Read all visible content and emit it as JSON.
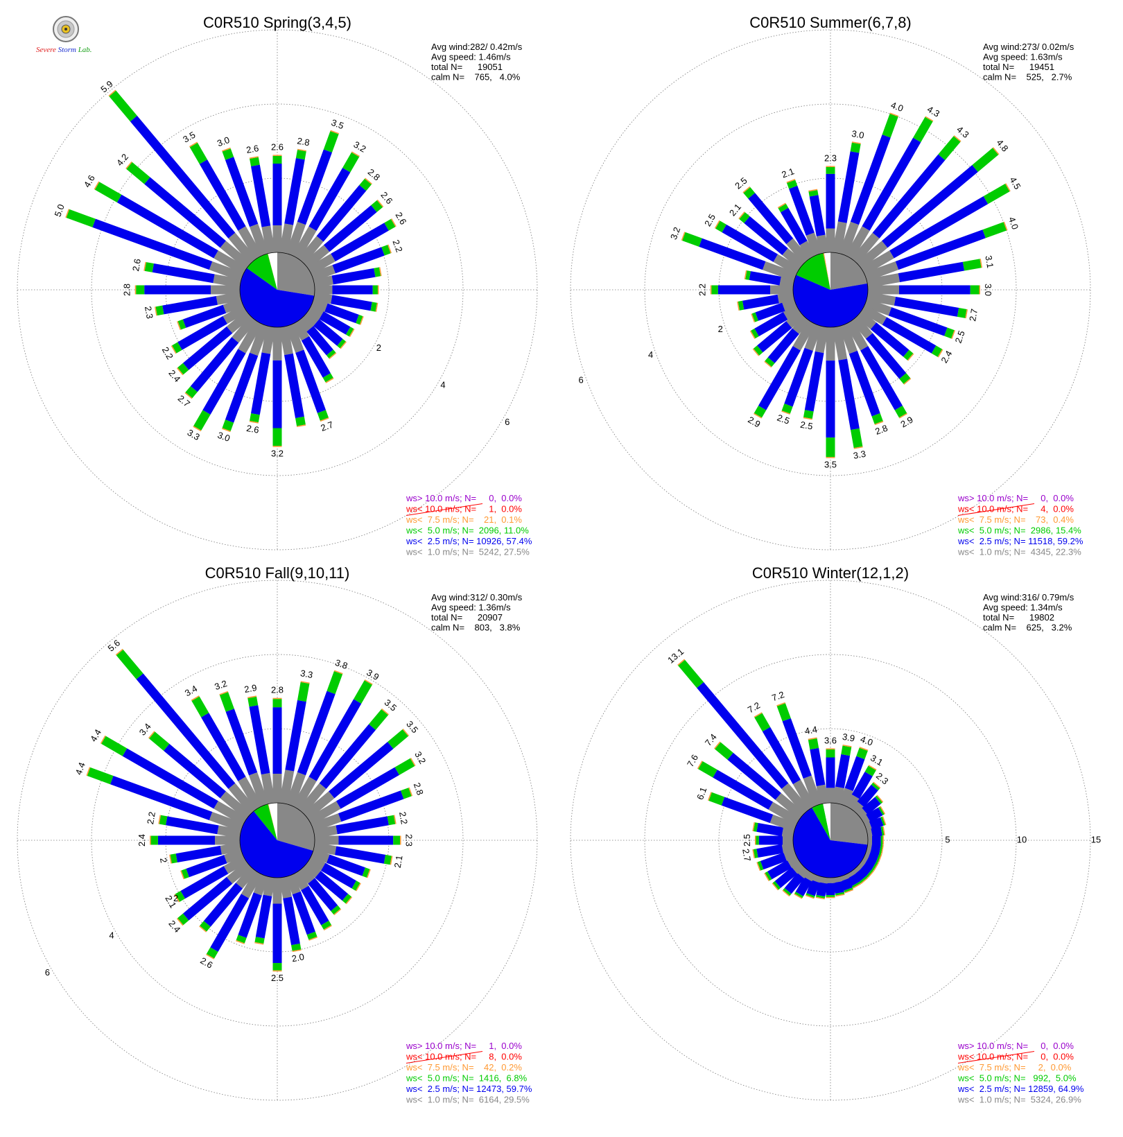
{
  "logo": {
    "line1": "Severe",
    "line2": "Storm",
    "line3": "Lab."
  },
  "colors": {
    "calm": "#ffffff",
    "lt1": "#888888",
    "lt2_5": "#0000ee",
    "lt5": "#00cc00",
    "lt7_5": "#ff9933",
    "lt10": "#ff0000",
    "gt10": "#9900cc"
  },
  "chart_data": [
    {
      "type": "windrose",
      "title": "C0R510 Spring(3,4,5)",
      "stats": [
        "Avg wind:282/ 0.42m/s",
        "Avg speed: 1.46m/s",
        "total N=      19051",
        "calm N=    765,   4.0%"
      ],
      "rings": [
        2,
        4,
        6
      ],
      "ring_label_angle": 120,
      "directions": [
        0,
        10,
        20,
        30,
        40,
        50,
        60,
        70,
        80,
        90,
        100,
        110,
        120,
        130,
        140,
        150,
        160,
        170,
        180,
        190,
        200,
        210,
        220,
        230,
        240,
        250,
        260,
        270,
        280,
        290,
        300,
        310,
        320,
        330,
        340,
        350
      ],
      "totals": [
        2.6,
        2.8,
        3.5,
        3.2,
        2.8,
        2.6,
        2.6,
        2.2,
        1.8,
        1.7,
        1.7,
        1.4,
        1.3,
        1.3,
        1.3,
        1.8,
        2.7,
        2.7,
        3.2,
        2.6,
        3.0,
        3.3,
        2.7,
        2.4,
        2.2,
        1.8,
        2.3,
        2.8,
        2.6,
        5.0,
        4.6,
        4.2,
        5.9,
        3.5,
        3.0,
        2.6
      ],
      "labels": [
        "2.6",
        "2.8",
        "3.5",
        "3.2",
        "2.8",
        "2.6",
        "2.6",
        "2.2",
        "",
        "",
        "",
        "",
        "",
        "",
        "",
        "",
        "2.7",
        "",
        "3.2",
        "2.6",
        "3.0",
        "3.3",
        "2.7",
        "2.4",
        "2.2",
        "",
        "2.3",
        "2.8",
        "2.6",
        "5.0",
        "4.6",
        "4.2",
        "5.9",
        "3.5",
        "3.0",
        "2.6"
      ],
      "pie": [
        {
          "key": "lt1",
          "angle": 99
        },
        {
          "key": "lt2_5",
          "angle": 206.6
        },
        {
          "key": "lt5",
          "angle": 39.6
        },
        {
          "key": "lt7_5",
          "angle": 0.4
        },
        {
          "key": "lt10",
          "angle": 0
        },
        {
          "key": "gt10",
          "angle": 0
        },
        {
          "key": "calm",
          "angle": 14.4
        }
      ],
      "legend": [
        {
          "key": "gt10",
          "text": "ws> 10.0 m/s; N=     0,  0.0%"
        },
        {
          "key": "lt10",
          "text": "ws< 10.0 m/s; N=     1,  0.0%"
        },
        {
          "key": "lt7_5",
          "text": "ws<  7.5 m/s; N=    21,  0.1%"
        },
        {
          "key": "lt5",
          "text": "ws<  5.0 m/s; N=  2096, 11.0%"
        },
        {
          "key": "lt2_5",
          "text": "ws<  2.5 m/s; N= 10926, 57.4%"
        },
        {
          "key": "lt1",
          "text": "ws<  1.0 m/s; N=  5242, 27.5%"
        }
      ]
    },
    {
      "type": "windrose",
      "title": "C0R510 Summer(6,7,8)",
      "stats": [
        "Avg wind:273/ 0.02m/s",
        "Avg speed: 1.63m/s",
        "total N=      19451",
        "calm N=    525,   2.7%"
      ],
      "rings": [
        2,
        4,
        6
      ],
      "ring_label_angle": 250,
      "directions": [
        0,
        10,
        20,
        30,
        40,
        50,
        60,
        70,
        80,
        90,
        100,
        110,
        120,
        130,
        140,
        150,
        160,
        170,
        180,
        190,
        200,
        210,
        220,
        230,
        240,
        250,
        260,
        270,
        280,
        290,
        300,
        310,
        320,
        330,
        340,
        350
      ],
      "totals": [
        2.3,
        3.0,
        4.0,
        4.3,
        4.3,
        4.8,
        4.5,
        4.0,
        3.1,
        3.0,
        2.7,
        2.5,
        2.4,
        1.8,
        2.2,
        2.9,
        2.8,
        3.3,
        3.5,
        2.5,
        2.5,
        2.9,
        1.6,
        1.6,
        1.4,
        1.2,
        1.5,
        2.2,
        1.3,
        3.2,
        2.5,
        2.1,
        2.5,
        1.6,
        2.1,
        1.7
      ],
      "labels": [
        "2.3",
        "3.0",
        "4.0",
        "4.3",
        "4.3",
        "4.8",
        "4.5",
        "4.0",
        "3.1",
        "3.0",
        "2.7",
        "2.5",
        "2.4",
        "",
        "",
        "2.9",
        "2.8",
        "3.3",
        "3.5",
        "2.5",
        "2.5",
        "2.9",
        "",
        "",
        "",
        "",
        "",
        "2.2",
        "",
        "3.2",
        "2.5",
        "2.1",
        "2.5",
        "",
        "2.1",
        ""
      ],
      "pie": [
        {
          "key": "lt1",
          "angle": 80.3
        },
        {
          "key": "lt2_5",
          "angle": 213.1
        },
        {
          "key": "lt5",
          "angle": 55.4
        },
        {
          "key": "lt7_5",
          "angle": 1.4
        },
        {
          "key": "lt10",
          "angle": 0
        },
        {
          "key": "gt10",
          "angle": 0
        },
        {
          "key": "calm",
          "angle": 9.8
        }
      ],
      "legend": [
        {
          "key": "gt10",
          "text": "ws> 10.0 m/s; N=     0,  0.0%"
        },
        {
          "key": "lt10",
          "text": "ws< 10.0 m/s; N=     4,  0.0%"
        },
        {
          "key": "lt7_5",
          "text": "ws<  7.5 m/s; N=    73,  0.4%"
        },
        {
          "key": "lt5",
          "text": "ws<  5.0 m/s; N=  2986, 15.4%"
        },
        {
          "key": "lt2_5",
          "text": "ws<  2.5 m/s; N= 11518, 59.2%"
        },
        {
          "key": "lt1",
          "text": "ws<  1.0 m/s; N=  4345, 22.3%"
        }
      ]
    },
    {
      "type": "windrose",
      "title": "C0R510 Fall(9,10,11)",
      "stats": [
        "Avg wind:312/ 0.30m/s",
        "Avg speed: 1.36m/s",
        "total N=      20907",
        "calm N=    803,   3.8%"
      ],
      "rings": [
        2,
        4,
        6
      ],
      "ring_label_angle": 240,
      "directions": [
        0,
        10,
        20,
        30,
        40,
        50,
        60,
        70,
        80,
        90,
        100,
        110,
        120,
        130,
        140,
        150,
        160,
        170,
        180,
        190,
        200,
        210,
        220,
        230,
        240,
        250,
        260,
        270,
        280,
        290,
        300,
        310,
        320,
        330,
        340,
        350
      ],
      "totals": [
        2.8,
        3.3,
        3.8,
        3.9,
        3.5,
        3.5,
        3.2,
        2.8,
        2.2,
        2.3,
        2.1,
        1.6,
        1.5,
        1.5,
        1.5,
        1.7,
        1.8,
        2.0,
        2.5,
        1.8,
        1.9,
        2.6,
        2.1,
        2.4,
        2.1,
        1.7,
        1.9,
        2.4,
        2.2,
        4.4,
        4.4,
        3.4,
        5.6,
        3.4,
        3.2,
        2.9
      ],
      "labels": [
        "2.8",
        "3.3",
        "3.8",
        "3.9",
        "3.5",
        "3.5",
        "3.2",
        "2.8",
        "2.2",
        "2.3",
        "2.1",
        "",
        "",
        "",
        "",
        "",
        "",
        "2.0",
        "2.5",
        "",
        "",
        "2.6",
        "",
        "2.4",
        "2.1",
        "",
        "2",
        "2.4",
        "2.2",
        "4.4",
        "4.4",
        "3.4",
        "5.6",
        "3.4",
        "3.2",
        "2.9"
      ],
      "pie": [
        {
          "key": "lt1",
          "angle": 106.2
        },
        {
          "key": "lt2_5",
          "angle": 214.9
        },
        {
          "key": "lt5",
          "angle": 24.5
        },
        {
          "key": "lt7_5",
          "angle": 0.7
        },
        {
          "key": "lt10",
          "angle": 0
        },
        {
          "key": "gt10",
          "angle": 0
        },
        {
          "key": "calm",
          "angle": 13.7
        }
      ],
      "legend": [
        {
          "key": "gt10",
          "text": "ws> 10.0 m/s; N=     1,  0.0%"
        },
        {
          "key": "lt10",
          "text": "ws< 10.0 m/s; N=     8,  0.0%"
        },
        {
          "key": "lt7_5",
          "text": "ws<  7.5 m/s; N=    42,  0.2%"
        },
        {
          "key": "lt5",
          "text": "ws<  5.0 m/s; N=  1416,  6.8%"
        },
        {
          "key": "lt2_5",
          "text": "ws<  2.5 m/s; N= 12473, 59.7%"
        },
        {
          "key": "lt1",
          "text": "ws<  1.0 m/s; N=  6164, 29.5%"
        }
      ]
    },
    {
      "type": "windrose",
      "title": "C0R510 Winter(12,1,2)",
      "stats": [
        "Avg wind:316/ 0.79m/s",
        "Avg speed: 1.34m/s",
        "total N=      19802",
        "calm N=    625,   3.2%"
      ],
      "rings": [
        5,
        10,
        15
      ],
      "ring_label_angle": 90,
      "directions": [
        0,
        10,
        20,
        30,
        40,
        50,
        60,
        70,
        80,
        90,
        100,
        110,
        120,
        130,
        140,
        150,
        160,
        170,
        180,
        190,
        200,
        210,
        220,
        230,
        240,
        250,
        260,
        270,
        280,
        290,
        300,
        310,
        320,
        330,
        340,
        350
      ],
      "totals": [
        3.6,
        3.9,
        4.0,
        3.1,
        2.3,
        1.8,
        1.5,
        1.3,
        1.1,
        1.0,
        1.0,
        1.0,
        1.0,
        1.0,
        1.0,
        1.0,
        1.1,
        1.2,
        1.3,
        1.4,
        1.5,
        1.8,
        2.1,
        2.3,
        2.4,
        2.6,
        2.7,
        2.5,
        2.7,
        6.1,
        7.6,
        7.4,
        13.1,
        7.2,
        7.2,
        4.4
      ],
      "labels": [
        "3.6",
        "3.9",
        "4.0",
        "3.1",
        "2.3",
        "",
        "",
        "",
        "",
        "",
        "",
        "",
        "",
        "",
        "",
        "",
        "",
        "",
        "",
        "",
        "",
        "",
        "",
        "",
        "",
        "",
        "2.7",
        "2.5",
        "",
        "6.1",
        "7.6",
        "7.4",
        "13.1",
        "7.2",
        "7.2",
        "4.4"
      ],
      "pie": [
        {
          "key": "lt1",
          "angle": 96.8
        },
        {
          "key": "lt2_5",
          "angle": 233.6
        },
        {
          "key": "lt5",
          "angle": 18
        },
        {
          "key": "lt7_5",
          "angle": 0
        },
        {
          "key": "lt10",
          "angle": 0
        },
        {
          "key": "gt10",
          "angle": 0
        },
        {
          "key": "calm",
          "angle": 11.6
        }
      ],
      "legend": [
        {
          "key": "gt10",
          "text": "ws> 10.0 m/s; N=     0,  0.0%"
        },
        {
          "key": "lt10",
          "text": "ws< 10.0 m/s; N=     0,  0.0%"
        },
        {
          "key": "lt7_5",
          "text": "ws<  7.5 m/s; N=     2,  0.0%"
        },
        {
          "key": "lt5",
          "text": "ws<  5.0 m/s; N=   992,  5.0%"
        },
        {
          "key": "lt2_5",
          "text": "ws<  2.5 m/s; N= 12859, 64.9%"
        },
        {
          "key": "lt1",
          "text": "ws<  1.0 m/s; N=  5324, 26.9%"
        }
      ]
    }
  ]
}
